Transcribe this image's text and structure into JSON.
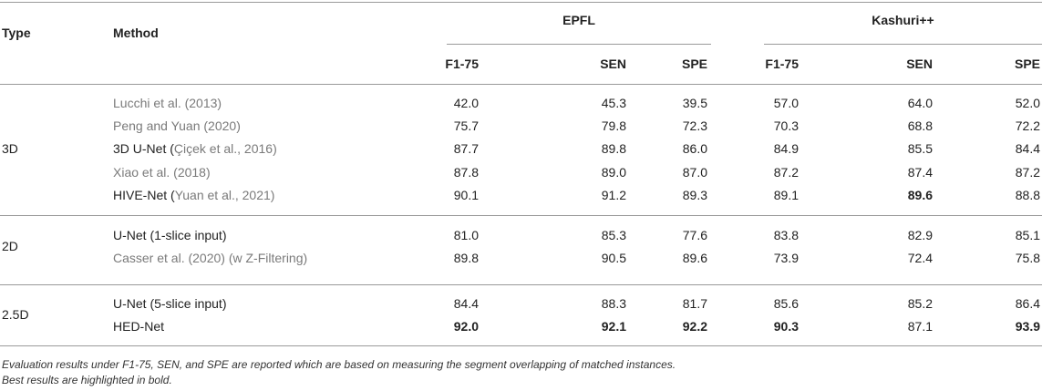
{
  "headers": {
    "type": "Type",
    "method": "Method",
    "group1": "EPFL",
    "group2": "Kashuri++",
    "cols": [
      "F1-75",
      "SEN",
      "SPE",
      "F1-75",
      "SEN",
      "SPE"
    ]
  },
  "groups": [
    {
      "type": "3D",
      "rows": [
        {
          "method_main": "",
          "method_ref": "Lucchi et al. (2013)",
          "values": [
            "42.0",
            "45.3",
            "39.5",
            "57.0",
            "64.0",
            "52.0"
          ],
          "bold": [
            false,
            false,
            false,
            false,
            false,
            false
          ]
        },
        {
          "method_main": "",
          "method_ref": "Peng and Yuan (2020)",
          "values": [
            "75.7",
            "79.8",
            "72.3",
            "70.3",
            "68.8",
            "72.2"
          ],
          "bold": [
            false,
            false,
            false,
            false,
            false,
            false
          ]
        },
        {
          "method_main": "3D U-Net (",
          "method_ref": "Çiçek et al., 2016)",
          "values": [
            "87.7",
            "89.8",
            "86.0",
            "84.9",
            "85.5",
            "84.4"
          ],
          "bold": [
            false,
            false,
            false,
            false,
            false,
            false
          ]
        },
        {
          "method_main": "",
          "method_ref": "Xiao et al. (2018)",
          "values": [
            "87.8",
            "89.0",
            "87.0",
            "87.2",
            "87.4",
            "87.2"
          ],
          "bold": [
            false,
            false,
            false,
            false,
            false,
            false
          ]
        },
        {
          "method_main": "HIVE-Net (",
          "method_ref": "Yuan et al., 2021)",
          "values": [
            "90.1",
            "91.2",
            "89.3",
            "89.1",
            "89.6",
            "88.8"
          ],
          "bold": [
            false,
            false,
            false,
            false,
            true,
            false
          ]
        }
      ]
    },
    {
      "type": "2D",
      "rows": [
        {
          "method_main": "U-Net (1-slice input)",
          "method_ref": "",
          "values": [
            "81.0",
            "85.3",
            "77.6",
            "83.8",
            "82.9",
            "85.1"
          ],
          "bold": [
            false,
            false,
            false,
            false,
            false,
            false
          ]
        },
        {
          "method_main": "",
          "method_ref": "Casser et al. (2020) (w Z-Filtering)",
          "values": [
            "89.8",
            "90.5",
            "89.6",
            "73.9",
            "72.4",
            "75.8"
          ],
          "bold": [
            false,
            false,
            false,
            false,
            false,
            false
          ]
        }
      ]
    },
    {
      "type": "2.5D",
      "rows": [
        {
          "method_main": "U-Net (5-slice input)",
          "method_ref": "",
          "values": [
            "84.4",
            "88.3",
            "81.7",
            "85.6",
            "85.2",
            "86.4"
          ],
          "bold": [
            false,
            false,
            false,
            false,
            false,
            false
          ]
        },
        {
          "method_main": "HED-Net",
          "method_ref": "",
          "values": [
            "92.0",
            "92.1",
            "92.2",
            "90.3",
            "87.1",
            "93.9"
          ],
          "bold": [
            true,
            true,
            true,
            true,
            false,
            true
          ]
        }
      ]
    }
  ],
  "footnotes": [
    "Evaluation results under F1-75, SEN, and SPE are reported which are based on measuring the segment overlapping of matched instances.",
    "Best results are highlighted in bold."
  ]
}
